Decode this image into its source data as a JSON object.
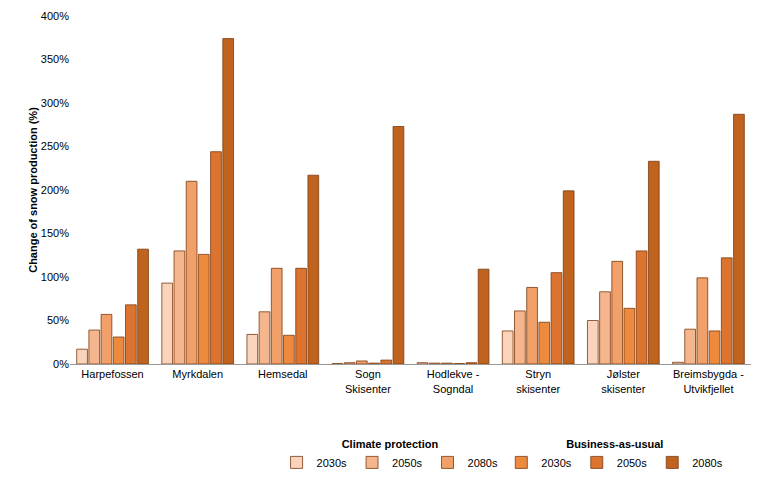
{
  "chart_data": {
    "type": "bar",
    "y_label": "Change of snow production (%)",
    "categories": [
      "Harpefossen",
      "Myrkdalen",
      "Hemsedal",
      "Sogn Skisenter",
      "Hodlekve - Sogndal",
      "Stryn skisenter",
      "Jølster skisenter",
      "Breimsbygda - Utvikfjellet"
    ],
    "series": [
      {
        "name": "2030s",
        "group": "Climate protection",
        "color": "#f9d3bc",
        "values": [
          17,
          93,
          34,
          0.5,
          1.5,
          38,
          50,
          2
        ]
      },
      {
        "name": "2050s",
        "group": "Climate protection",
        "color": "#f5b68e",
        "values": [
          39,
          130,
          60,
          1.5,
          1,
          61,
          83,
          40
        ]
      },
      {
        "name": "2080s",
        "group": "Climate protection",
        "color": "#f2a06a",
        "values": [
          57,
          210,
          110,
          3.5,
          1,
          88,
          118,
          99
        ]
      },
      {
        "name": "2030s",
        "group": "Business-as-usual",
        "color": "#ee8a3e",
        "values": [
          31,
          126,
          33,
          1,
          0.5,
          48,
          64,
          38
        ]
      },
      {
        "name": "2050s",
        "group": "Business-as-usual",
        "color": "#dc7430",
        "values": [
          68,
          244,
          110,
          4.5,
          1.5,
          105,
          130,
          122
        ]
      },
      {
        "name": "2080s",
        "group": "Business-as-usual",
        "color": "#c0631e",
        "values": [
          132,
          374,
          217,
          273,
          109,
          199,
          233,
          287
        ]
      }
    ],
    "ylim": [
      0,
      400
    ],
    "yticks": [
      {
        "value": 0,
        "label": "0%"
      },
      {
        "value": 50,
        "label": "50%"
      },
      {
        "value": 100,
        "label": "100%"
      },
      {
        "value": 150,
        "label": "150%"
      },
      {
        "value": 200,
        "label": "200%"
      },
      {
        "value": 250,
        "label": "250%"
      },
      {
        "value": 300,
        "label": "300%"
      },
      {
        "value": 350,
        "label": "350%"
      },
      {
        "value": 400,
        "label": "400%"
      }
    ],
    "grid": false,
    "legend": "bottom"
  }
}
